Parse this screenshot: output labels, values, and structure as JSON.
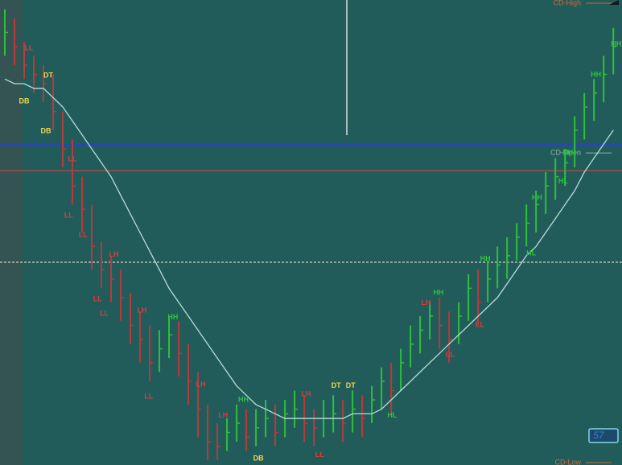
{
  "chart_data": {
    "type": "ohlc",
    "xlim": [
      -0.5,
      63.9
    ],
    "ylim": [
      0,
      100
    ],
    "up_color": "#2fbf3a",
    "down_color": "#b83a3a",
    "close": [
      93,
      90,
      86,
      84,
      82,
      76,
      68,
      60,
      55,
      47,
      42,
      40,
      36,
      30,
      27,
      22,
      25,
      28,
      24,
      18,
      12,
      5,
      4,
      7,
      9,
      6,
      8,
      10,
      7,
      11,
      12,
      9,
      8,
      10,
      11,
      9,
      12,
      10,
      14,
      18,
      16,
      22,
      26,
      29,
      32,
      30,
      27,
      32,
      38,
      35,
      40,
      43,
      45,
      49,
      52,
      56,
      60,
      62,
      65,
      72,
      77,
      80,
      84,
      90
    ],
    "high": [
      98,
      96,
      91,
      88,
      86,
      84,
      76,
      70,
      62,
      56,
      48,
      45,
      42,
      37,
      33,
      30,
      29,
      32,
      31,
      26,
      20,
      13,
      9,
      10,
      13,
      12,
      12,
      14,
      13,
      14,
      16,
      15,
      12,
      14,
      15,
      14,
      16,
      15,
      17,
      21,
      22,
      25,
      30,
      32,
      35,
      36,
      33,
      35,
      41,
      42,
      44,
      47,
      49,
      52,
      56,
      59,
      63,
      66,
      68,
      75,
      80,
      83,
      88,
      94
    ],
    "low": [
      88,
      86,
      83,
      80,
      78,
      72,
      64,
      56,
      50,
      42,
      38,
      35,
      31,
      26,
      22,
      18,
      20,
      23,
      19,
      13,
      6,
      1,
      1,
      3,
      5,
      3,
      4,
      6,
      4,
      6,
      8,
      5,
      4,
      6,
      7,
      5,
      7,
      6,
      9,
      12,
      11,
      16,
      21,
      24,
      27,
      25,
      22,
      26,
      31,
      30,
      35,
      38,
      40,
      44,
      47,
      50,
      54,
      57,
      60,
      64,
      70,
      74,
      78,
      84
    ],
    "moving_average": {
      "color": "#b8dcd8",
      "values": [
        83,
        82,
        82,
        81,
        81,
        79,
        77,
        74,
        71,
        68,
        65,
        62,
        58,
        54,
        50,
        46,
        42,
        38,
        35,
        32,
        29,
        26,
        23,
        20,
        17,
        15,
        13,
        12,
        11,
        10,
        10,
        10,
        10,
        10,
        10,
        10,
        11,
        11,
        11,
        12,
        14,
        16,
        18,
        20,
        22,
        24,
        26,
        28,
        30,
        32,
        34,
        36,
        39,
        42,
        45,
        47,
        50,
        53,
        56,
        59,
        63,
        66,
        69,
        72
      ]
    },
    "levels": [
      {
        "label": "CD-High",
        "value": 99.3,
        "color": "#c86a3a"
      },
      {
        "value": 68.9,
        "color": "#2a3fd0"
      },
      {
        "label": "CD-Open",
        "value": 67.1,
        "color": "#8fb0b0"
      },
      {
        "value": 63.3,
        "color": "#b84848"
      },
      {
        "value": 43.6,
        "color": "#d8d0c0",
        "dashed": true
      },
      {
        "label": "CD-Low",
        "value": 0.5,
        "color": "#c86a3a"
      }
    ],
    "annotations": [
      {
        "text": "DT",
        "x": 4.5,
        "y": 83.7,
        "color": "#f0d84a"
      },
      {
        "text": "DB",
        "x": 2,
        "y": 78.2,
        "color": "#f0d84a"
      },
      {
        "text": "DB",
        "x": 4.25,
        "y": 71.8,
        "color": "#f0d84a"
      },
      {
        "text": "DT",
        "x": 34.3,
        "y": 17,
        "color": "#f0d84a"
      },
      {
        "text": "DT",
        "x": 35.8,
        "y": 17,
        "color": "#f0d84a"
      },
      {
        "text": "DB",
        "x": 26.25,
        "y": 1.4,
        "color": "#f0d84a"
      },
      {
        "text": "LL",
        "x": 2.5,
        "y": 89.6,
        "color": "#d04040"
      },
      {
        "text": "LL",
        "x": 7,
        "y": 65.7,
        "color": "#d04040"
      },
      {
        "text": "LL",
        "x": 6.6,
        "y": 53.6,
        "color": "#d04040"
      },
      {
        "text": "LL",
        "x": 8.1,
        "y": 49.5,
        "color": "#d04040"
      },
      {
        "text": "LH",
        "x": 11.3,
        "y": 45.2,
        "color": "#d04040"
      },
      {
        "text": "LL",
        "x": 9.6,
        "y": 35.6,
        "color": "#d04040"
      },
      {
        "text": "LL",
        "x": 10.3,
        "y": 32.5,
        "color": "#d04040"
      },
      {
        "text": "LH",
        "x": 14.2,
        "y": 33.2,
        "color": "#d04040"
      },
      {
        "text": "LL",
        "x": 14.9,
        "y": 14.7,
        "color": "#d04040"
      },
      {
        "text": "LH",
        "x": 20.3,
        "y": 17.3,
        "color": "#d04040"
      },
      {
        "text": "LH",
        "x": 22.6,
        "y": 10.6,
        "color": "#d04040"
      },
      {
        "text": "LH",
        "x": 31.2,
        "y": 15.2,
        "color": "#d04040"
      },
      {
        "text": "LL",
        "x": 32.6,
        "y": 2.1,
        "color": "#d04040"
      },
      {
        "text": "LH",
        "x": 43.6,
        "y": 34.8,
        "color": "#d04040"
      },
      {
        "text": "LL",
        "x": 46.1,
        "y": 23.7,
        "color": "#d04040"
      },
      {
        "text": "LL",
        "x": 49.2,
        "y": 30.1,
        "color": "#d04040"
      },
      {
        "text": "HH",
        "x": 17.4,
        "y": 31.7,
        "color": "#30c040"
      },
      {
        "text": "HH",
        "x": 24.7,
        "y": 14,
        "color": "#30c040"
      },
      {
        "text": "HL",
        "x": 40.1,
        "y": 10.6,
        "color": "#30c040"
      },
      {
        "text": "HH",
        "x": 44.9,
        "y": 37,
        "color": "#30c040"
      },
      {
        "text": "HH",
        "x": 49.75,
        "y": 44.3,
        "color": "#30c040"
      },
      {
        "text": "HL",
        "x": 54.5,
        "y": 45.5,
        "color": "#30c040"
      },
      {
        "text": "HH",
        "x": 55.1,
        "y": 57.4,
        "color": "#30c040"
      },
      {
        "text": "HL",
        "x": 57.8,
        "y": 61,
        "color": "#30c040"
      },
      {
        "text": "HH",
        "x": 58.3,
        "y": 67.1,
        "color": "#30c040"
      },
      {
        "text": "HH",
        "x": 61.2,
        "y": 83.9,
        "color": "#30c040"
      },
      {
        "text": "HH",
        "x": 63.3,
        "y": 90.5,
        "color": "#30c040"
      }
    ],
    "badge": "57"
  }
}
